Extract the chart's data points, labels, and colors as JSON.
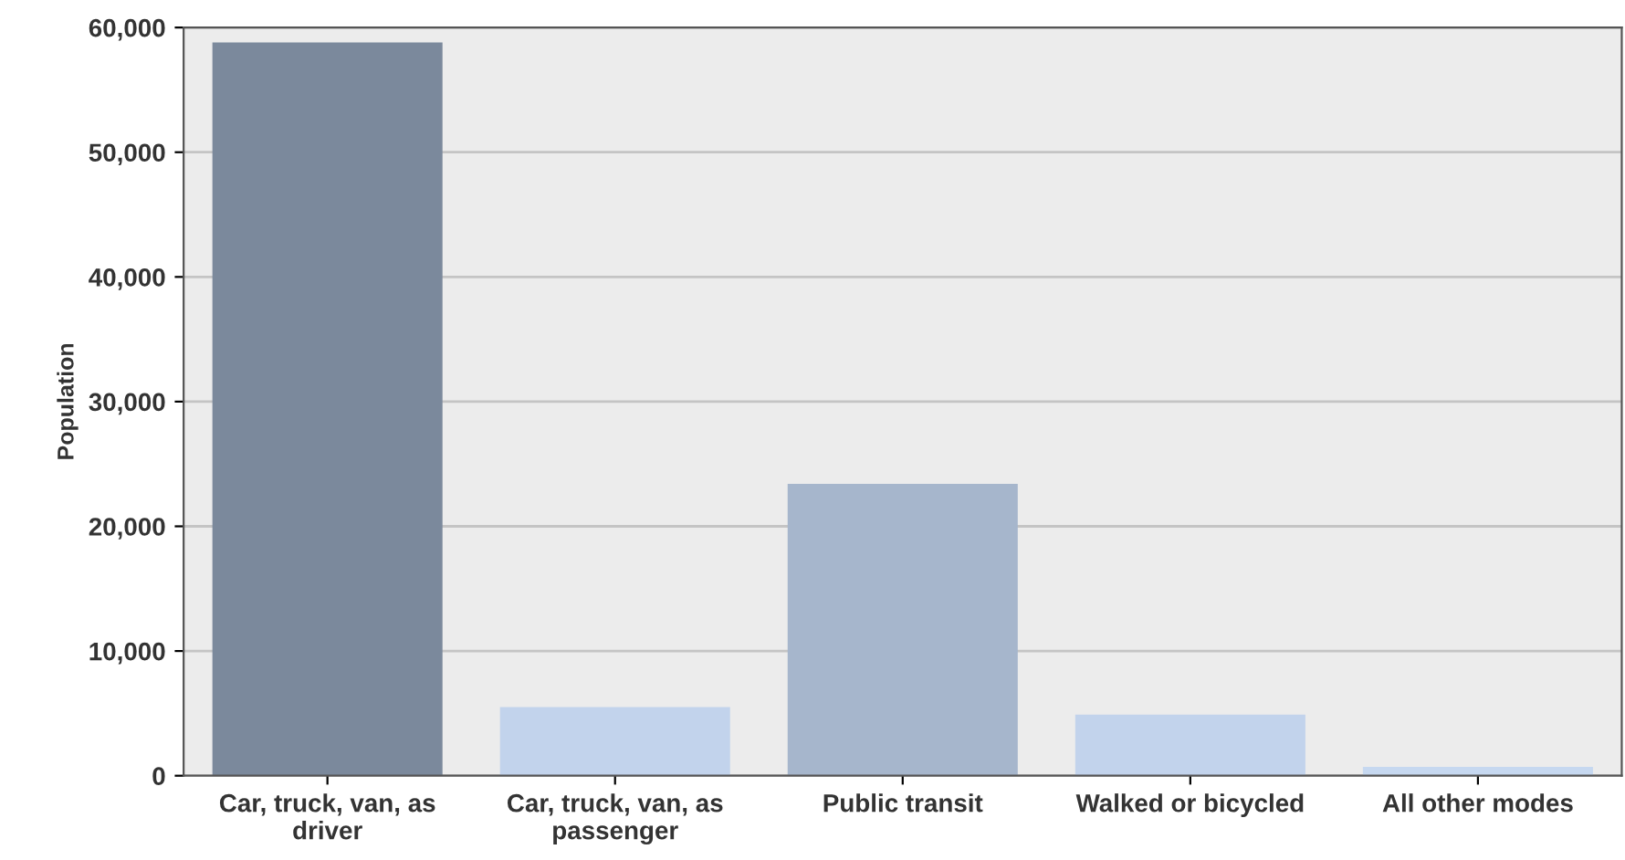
{
  "chart_data": {
    "type": "bar",
    "ylabel": "Population",
    "categories": [
      "Car, truck, van, as\ndriver",
      "Car, truck, van, as\npassenger",
      "Public transit",
      "Walked or bicycled",
      "All other modes"
    ],
    "values": [
      58800,
      5500,
      23400,
      4900,
      700
    ],
    "colors": [
      "#7b899c",
      "#c2d3ec",
      "#a6b6cc",
      "#c2d3ec",
      "#c6d8f0"
    ],
    "ylim": [
      0,
      60000
    ],
    "yticks": [
      {
        "value": 0,
        "label": "0"
      },
      {
        "value": 10000,
        "label": "10,000"
      },
      {
        "value": 20000,
        "label": "20,000"
      },
      {
        "value": 30000,
        "label": "30,000"
      },
      {
        "value": 40000,
        "label": "40,000"
      },
      {
        "value": 50000,
        "label": "50,000"
      },
      {
        "value": 60000,
        "label": "60,000"
      }
    ],
    "grid": "y"
  }
}
